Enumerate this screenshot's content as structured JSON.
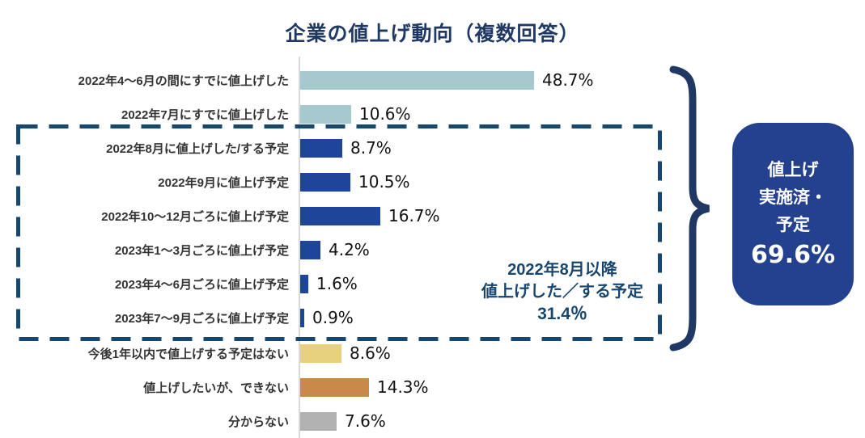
{
  "title": "企業の値上げ動向（複数回答）",
  "chart_data": {
    "type": "bar",
    "orientation": "horizontal",
    "title": "企業の値上げ動向（複数回答）",
    "unit": "%",
    "xlim": [
      0,
      50
    ],
    "grid": false,
    "categories": [
      "2022年4〜6月の間にすでに値上げした",
      "2022年7月にすでに値上げした",
      "2022年8月に値上げした/する予定",
      "2022年9月に値上げ予定",
      "2022年10〜12月ごろに値上げ予定",
      "2023年1〜3月ごろに値上げ予定",
      "2023年4〜6月ごろに値上げ予定",
      "2023年7〜9月ごろに値上げ予定",
      "今後1年以内で値上げする予定はない",
      "値上げしたいが、できない",
      "分からない"
    ],
    "values": [
      48.7,
      10.6,
      8.7,
      10.5,
      16.7,
      4.2,
      1.6,
      0.9,
      8.6,
      14.3,
      7.6
    ],
    "value_labels": [
      "48.7%",
      "10.6%",
      "8.7%",
      "10.5%",
      "16.7%",
      "4.2%",
      "1.6%",
      "0.9%",
      "8.6%",
      "14.3%",
      "7.6%"
    ],
    "bar_colors": [
      "#A6C9CF",
      "#A6C9CF",
      "#1F459B",
      "#1F459B",
      "#1F459B",
      "#1F459B",
      "#1F459B",
      "#1F459B",
      "#E7D17F",
      "#C9894B",
      "#B1B1B1"
    ]
  },
  "annotation_box": {
    "line1": "2022年8月以降",
    "line2": "値上げした／する予定",
    "line3": "31.4％"
  },
  "summary_box": {
    "line1": "値上げ",
    "line2": "実施済・",
    "line3": "予定",
    "value": "69.6%"
  },
  "colors": {
    "title_navy": "#1F3864",
    "dashed_navy": "#17466F",
    "bar_navy": "#1F459B",
    "bar_lightblue": "#A6C9CF",
    "bar_yellow": "#E7D17F",
    "bar_orange": "#C9894B",
    "bar_gray": "#B1B1B1",
    "summary_bg": "#24418F",
    "axis_gray": "#D9D9D9"
  }
}
